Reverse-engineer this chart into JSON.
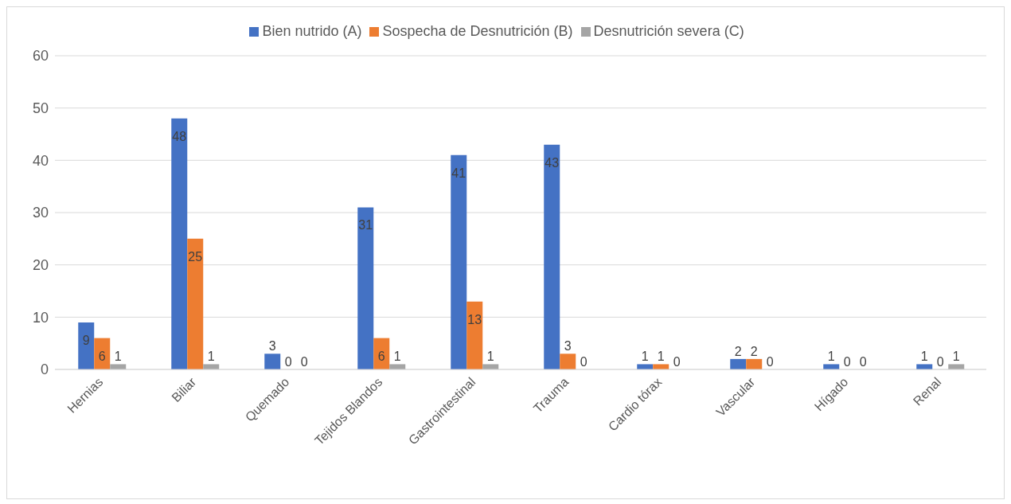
{
  "chart_data": {
    "type": "bar",
    "categories": [
      "Hernias",
      "Biliar",
      "Quemado",
      "Tejidos Blandos",
      "Gastrointestinal",
      "Trauma",
      "Cardio tórax",
      "Vascular",
      "Hígado",
      "Renal"
    ],
    "series": [
      {
        "name": "Bien nutrido (A)",
        "color": "#4472c4",
        "values": [
          9,
          48,
          3,
          31,
          41,
          43,
          1,
          2,
          1,
          1
        ]
      },
      {
        "name": "Sospecha de Desnutrición (B)",
        "color": "#ed7d31",
        "values": [
          6,
          25,
          0,
          6,
          13,
          3,
          1,
          2,
          0,
          0
        ]
      },
      {
        "name": "Desnutrición severa (C)",
        "color": "#a5a5a5",
        "values": [
          1,
          1,
          0,
          1,
          1,
          0,
          0,
          0,
          0,
          1
        ]
      }
    ],
    "ylim": [
      0,
      60
    ],
    "yticks": [
      0,
      10,
      20,
      30,
      40,
      50,
      60
    ],
    "grid": "y",
    "legend": "top",
    "data_labels": true
  }
}
